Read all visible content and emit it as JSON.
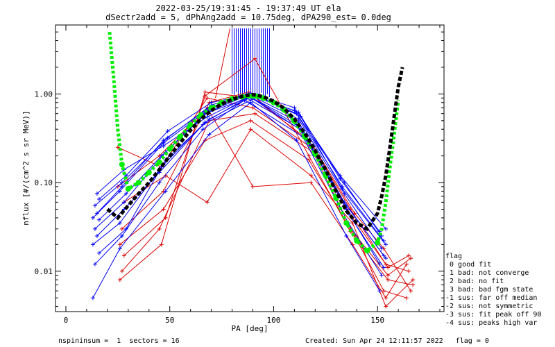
{
  "chart_data": {
    "type": "line",
    "title": "2022-03-25/19:31:45 - 19:37:49 UT ela",
    "subtitle": "dSectr2add = 5, dPhAng2add = 10.75deg, dPA290_est=    0.0deg",
    "xlabel": "PA [deg]",
    "ylabel": "nflux [#/(cm^2 s sr MeV)]",
    "x_scale": "linear",
    "y_scale": "log",
    "xlim": [
      -5,
      182
    ],
    "ylim": [
      0.0035,
      6.0
    ],
    "x_ticks": [
      0,
      50,
      100,
      150
    ],
    "y_ticks": [
      0.01,
      0.1,
      1.0
    ],
    "y_tick_labels": [
      "0.01",
      "0.10",
      "1.00"
    ],
    "grid": false,
    "legend_title": "flag",
    "legend_placement": "right-bottom-outside",
    "legend": [
      " 0 good fit",
      " 1 bad: not converge",
      " 2 bad: no fit",
      " 3 bad: bad fgm state",
      "-1 sus: far off median",
      "-2 sus: not symmetric",
      "-3 sus: fit peak off 90",
      "-4 sus: peaks high var"
    ],
    "colors": {
      "data_blue": "#0000ff",
      "data_red": "#dd0000",
      "fit_green": "#00ee00",
      "fit_black": "#000000"
    },
    "series": [
      {
        "name": "green fit",
        "color": "#00ee00",
        "style": "dashed-dots",
        "x": [
          21,
          23,
          25,
          27,
          30,
          35,
          40,
          45,
          50,
          55,
          60,
          65,
          70,
          75,
          80,
          85,
          88,
          90,
          92,
          95,
          100,
          105,
          110,
          115,
          120,
          125,
          130,
          135,
          140,
          145,
          150,
          152,
          154,
          156,
          158,
          160
        ],
        "y": [
          5.0,
          1.5,
          0.4,
          0.16,
          0.085,
          0.1,
          0.13,
          0.17,
          0.24,
          0.33,
          0.45,
          0.58,
          0.7,
          0.8,
          0.88,
          0.93,
          0.95,
          0.95,
          0.94,
          0.9,
          0.8,
          0.66,
          0.49,
          0.33,
          0.21,
          0.12,
          0.067,
          0.035,
          0.022,
          0.017,
          0.021,
          0.03,
          0.06,
          0.15,
          0.35,
          0.85
        ]
      },
      {
        "name": "black fit",
        "color": "#000000",
        "style": "dashed",
        "x": [
          20,
          25,
          30,
          35,
          40,
          45,
          50,
          55,
          60,
          65,
          70,
          75,
          80,
          85,
          88,
          90,
          92,
          95,
          100,
          105,
          110,
          115,
          120,
          125,
          130,
          135,
          140,
          145,
          150,
          152,
          154,
          156,
          158,
          160,
          162
        ],
        "y": [
          0.05,
          0.04,
          0.055,
          0.075,
          0.1,
          0.14,
          0.2,
          0.28,
          0.39,
          0.52,
          0.65,
          0.77,
          0.87,
          0.94,
          0.97,
          0.98,
          0.97,
          0.93,
          0.83,
          0.69,
          0.52,
          0.36,
          0.23,
          0.14,
          0.08,
          0.048,
          0.035,
          0.03,
          0.045,
          0.07,
          0.12,
          0.25,
          0.55,
          1.2,
          2.0
        ]
      }
    ],
    "data_lines_blue": [
      {
        "x": [
          14,
          28,
          48,
          68,
          88,
          112,
          134,
          152
        ],
        "y": [
          0.03,
          0.06,
          0.22,
          0.62,
          0.98,
          0.52,
          0.075,
          0.018
        ]
      },
      {
        "x": [
          15,
          27,
          47,
          69,
          89,
          111,
          133,
          153
        ],
        "y": [
          0.045,
          0.09,
          0.3,
          0.7,
          1.02,
          0.6,
          0.09,
          0.022
        ]
      },
      {
        "x": [
          13,
          26,
          46,
          67,
          87,
          113,
          135,
          151
        ],
        "y": [
          0.02,
          0.035,
          0.15,
          0.48,
          0.9,
          0.4,
          0.05,
          0.012
        ]
      },
      {
        "x": [
          16,
          29,
          49,
          70,
          90,
          110,
          132,
          154
        ],
        "y": [
          0.065,
          0.12,
          0.38,
          0.8,
          1.0,
          0.7,
          0.12,
          0.03
        ]
      },
      {
        "x": [
          14,
          27,
          45,
          66,
          86,
          114,
          136,
          152
        ],
        "y": [
          0.012,
          0.025,
          0.1,
          0.4,
          0.85,
          0.33,
          0.035,
          0.009
        ]
      },
      {
        "x": [
          15,
          28,
          47,
          68,
          88,
          112,
          134,
          153
        ],
        "y": [
          0.075,
          0.14,
          0.26,
          0.55,
          0.94,
          0.48,
          0.06,
          0.015
        ]
      },
      {
        "x": [
          13,
          26,
          48,
          69,
          89,
          111,
          135,
          151
        ],
        "y": [
          0.005,
          0.018,
          0.08,
          0.35,
          0.8,
          0.3,
          0.025,
          0.006
        ]
      },
      {
        "x": [
          16,
          29,
          46,
          67,
          91,
          113,
          133,
          154
        ],
        "y": [
          0.038,
          0.075,
          0.2,
          0.6,
          0.96,
          0.56,
          0.085,
          0.02
        ]
      },
      {
        "x": [
          14,
          27,
          49,
          70,
          87,
          110,
          134,
          152
        ],
        "y": [
          0.055,
          0.1,
          0.32,
          0.75,
          0.99,
          0.65,
          0.1,
          0.025
        ]
      },
      {
        "x": [
          15,
          28,
          45,
          66,
          90,
          114,
          136,
          153
        ],
        "y": [
          0.025,
          0.05,
          0.13,
          0.45,
          0.88,
          0.38,
          0.045,
          0.011
        ]
      },
      {
        "x": [
          13,
          26,
          47,
          68,
          88,
          112,
          132,
          151
        ],
        "y": [
          0.04,
          0.08,
          0.28,
          0.65,
          1.01,
          0.62,
          0.11,
          0.028
        ]
      },
      {
        "x": [
          16,
          29,
          48,
          69,
          89,
          111,
          135,
          154
        ],
        "y": [
          0.016,
          0.03,
          0.18,
          0.52,
          0.92,
          0.45,
          0.055,
          0.014
        ]
      }
    ],
    "data_lines_red": [
      {
        "x": [
          25,
          46,
          68,
          90,
          118,
          138,
          154,
          165
        ],
        "y": [
          0.25,
          0.15,
          0.9,
          0.7,
          0.25,
          0.04,
          0.012,
          0.01
        ]
      },
      {
        "x": [
          26,
          47,
          67,
          89,
          117,
          137,
          155,
          166
        ],
        "y": [
          0.02,
          0.05,
          0.3,
          0.5,
          0.18,
          0.03,
          0.009,
          0.014
        ]
      },
      {
        "x": [
          27,
          45,
          69,
          91,
          119,
          139,
          153,
          164
        ],
        "y": [
          0.01,
          0.03,
          0.5,
          0.6,
          0.22,
          0.025,
          0.006,
          0.005
        ]
      },
      {
        "x": [
          28,
          48,
          68,
          89,
          118,
          138,
          154,
          167
        ],
        "y": [
          0.06,
          0.12,
          0.06,
          0.4,
          0.12,
          0.035,
          0.004,
          0.008
        ]
      },
      {
        "x": [
          26,
          46,
          67,
          90,
          117,
          137,
          155,
          165
        ],
        "y": [
          0.008,
          0.02,
          1.05,
          0.9,
          0.3,
          0.05,
          0.011,
          0.015
        ]
      },
      {
        "x": [
          27,
          47,
          69,
          88,
          119,
          139,
          153,
          166
        ],
        "y": [
          0.03,
          0.08,
          0.8,
          1.05,
          0.26,
          0.045,
          0.018,
          0.006
        ]
      },
      {
        "x": [
          25,
          45,
          68,
          90,
          118,
          138,
          154,
          164
        ],
        "y": [
          0.09,
          0.2,
          0.7,
          0.09,
          0.1,
          0.02,
          0.005,
          0.012
        ]
      },
      {
        "x": [
          28,
          48,
          67,
          91,
          117,
          137,
          155,
          167
        ],
        "y": [
          0.015,
          0.04,
          0.95,
          2.5,
          0.2,
          0.028,
          0.008,
          0.007
        ]
      }
    ],
    "spike_lines": [
      {
        "x": 80,
        "y": [
          1.0,
          5.5
        ]
      },
      {
        "x": 81,
        "y": [
          0.95,
          5.5
        ]
      },
      {
        "x": 82,
        "y": [
          1.05,
          5.5
        ]
      },
      {
        "x": 83,
        "y": [
          0.9,
          5.5
        ]
      },
      {
        "x": 84,
        "y": [
          1.0,
          5.5
        ]
      },
      {
        "x": 85,
        "y": [
          0.97,
          5.5
        ]
      },
      {
        "x": 86,
        "y": [
          1.02,
          5.5
        ]
      },
      {
        "x": 87,
        "y": [
          0.96,
          5.5
        ]
      },
      {
        "x": 88,
        "y": [
          1.0,
          5.5
        ]
      },
      {
        "x": 89,
        "y": [
          0.98,
          5.5
        ]
      },
      {
        "x": 90,
        "y": [
          1.01,
          5.5
        ]
      },
      {
        "x": 91,
        "y": [
          0.95,
          5.5
        ]
      },
      {
        "x": 92,
        "y": [
          1.0,
          5.5
        ]
      },
      {
        "x": 93,
        "y": [
          0.97,
          5.5
        ]
      },
      {
        "x": 94,
        "y": [
          1.03,
          5.5
        ]
      },
      {
        "x": 95,
        "y": [
          0.96,
          5.5
        ]
      },
      {
        "x": 96,
        "y": [
          0.94,
          5.5
        ]
      },
      {
        "x": 97,
        "y": [
          0.99,
          5.5
        ]
      },
      {
        "x": 98,
        "y": [
          0.92,
          5.5
        ]
      }
    ]
  },
  "footer": {
    "left": "nspininsum =  1  sectors = 16",
    "right": "Created: Sun Apr 24 12:11:57 2022   flag = 0"
  }
}
